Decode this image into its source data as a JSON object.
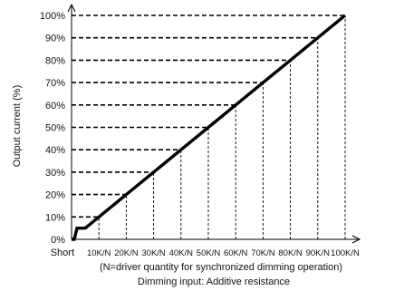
{
  "chart_data": {
    "type": "line",
    "ylabel": "Output current (%)",
    "y_ticks": [
      "0%",
      "10%",
      "20%",
      "30%",
      "40%",
      "50%",
      "60%",
      "70%",
      "80%",
      "90%",
      "100%"
    ],
    "x_ticks": [
      "Short",
      "10K/N",
      "20K/N",
      "30K/N",
      "40K/N",
      "50K/N",
      "60K/N",
      "70K/N",
      "80K/N",
      "90K/N",
      "100K/N"
    ],
    "xlim": [
      0,
      100
    ],
    "ylim": [
      0,
      100
    ],
    "series": [
      {
        "x": [
          0,
          1,
          2,
          5,
          10,
          20,
          30,
          40,
          50,
          60,
          70,
          80,
          90,
          100
        ],
        "y": [
          0,
          0,
          5,
          5,
          10,
          20,
          30,
          40,
          50,
          60,
          70,
          80,
          90,
          100
        ]
      }
    ],
    "reference_lines": "dashed",
    "caption_line1": "(N=driver quantity for synchronized dimming operation)",
    "caption_line2": "Dimming input: Additive resistance"
  }
}
